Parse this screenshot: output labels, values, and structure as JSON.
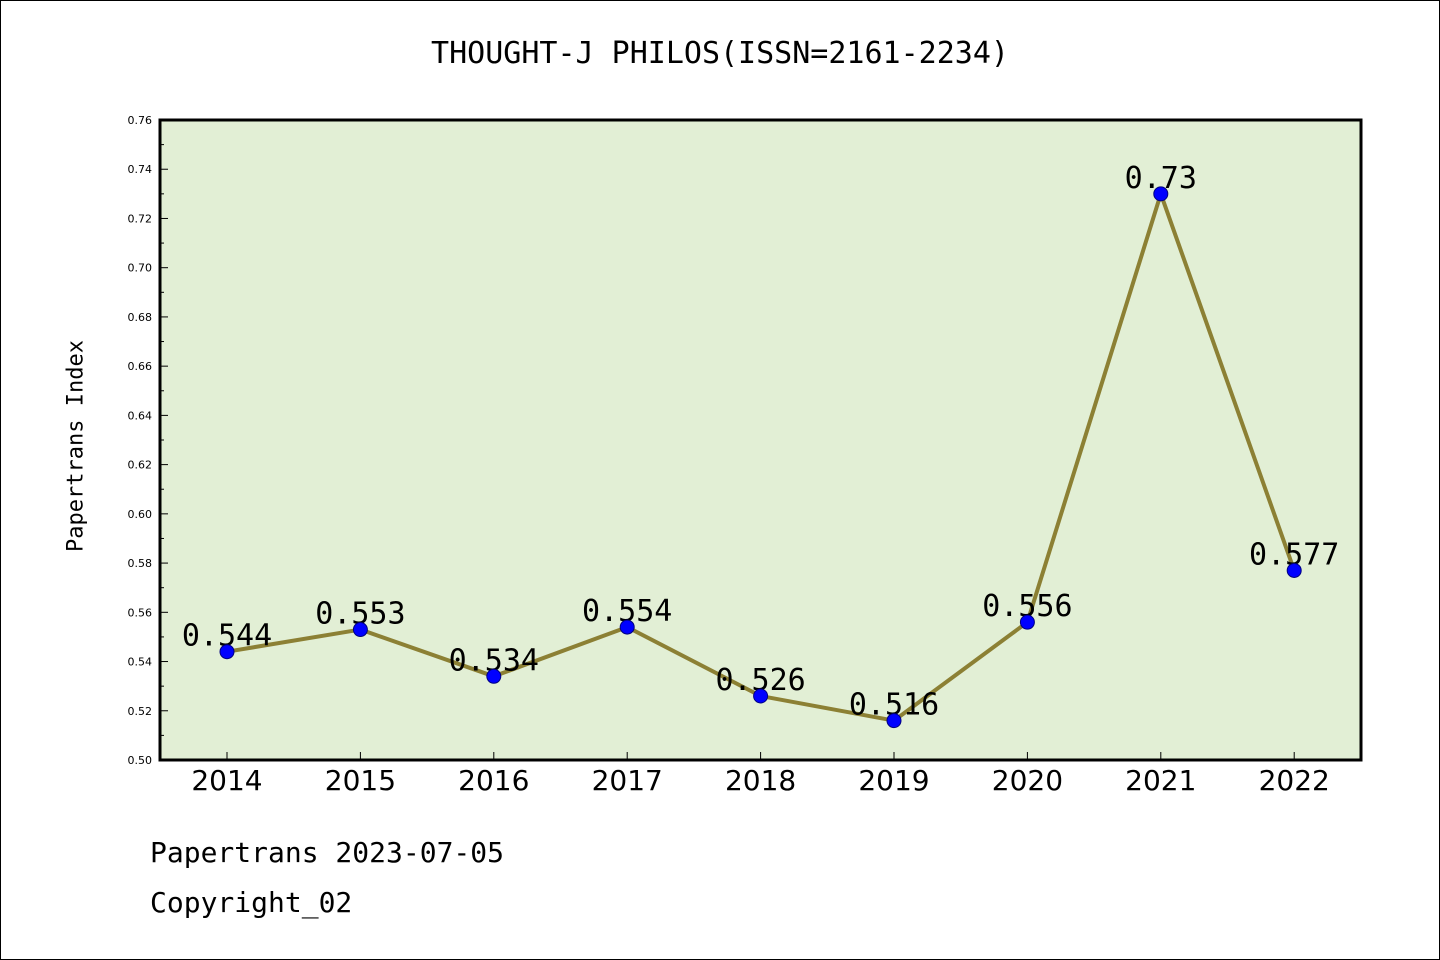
{
  "chart_data": {
    "type": "line",
    "title": "THOUGHT-J PHILOS(ISSN=2161-2234)",
    "xlabel": "",
    "ylabel": "Papertrans Index",
    "categories": [
      "2014",
      "2015",
      "2016",
      "2017",
      "2018",
      "2019",
      "2020",
      "2021",
      "2022"
    ],
    "series": [
      {
        "values": [
          0.544,
          0.553,
          0.534,
          0.554,
          0.526,
          0.516,
          0.556,
          0.73,
          0.577
        ],
        "data_labels": [
          "0.544",
          "0.553",
          "0.534",
          "0.554",
          "0.526",
          "0.516",
          "0.556",
          "0.73",
          "0.577"
        ]
      }
    ],
    "ylim": [
      0.5,
      0.76
    ],
    "yticks": [
      "0.50",
      "0.52",
      "0.54",
      "0.56",
      "0.58",
      "0.60",
      "0.62",
      "0.64",
      "0.66",
      "0.68",
      "0.70",
      "0.72",
      "0.74",
      "0.76"
    ],
    "grid": false,
    "colors": {
      "plot_background": "#e2efd5",
      "line": "#8c8034",
      "marker": "#0000ff",
      "marker_edge": "#000080"
    }
  },
  "footer": {
    "line1": "Papertrans 2023-07-05",
    "line2": "Copyright_02"
  }
}
